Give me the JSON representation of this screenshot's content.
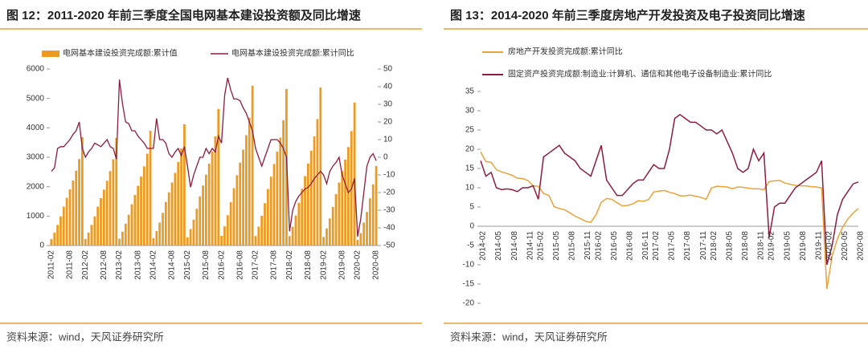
{
  "chart_data": [
    {
      "type": "bar_line",
      "title": "图 12：2011-2020 年前三季度全国电网基本建设投资额及同比增速",
      "source": "资料来源：wind，天风证券研究所",
      "categories": [
        "2011-02",
        null,
        null,
        null,
        null,
        null,
        "2011-08",
        null,
        null,
        null,
        null,
        "2012-02",
        null,
        null,
        null,
        null,
        null,
        "2012-08",
        null,
        null,
        null,
        null,
        "2013-02",
        null,
        null,
        null,
        null,
        null,
        "2013-08",
        null,
        null,
        null,
        null,
        "2014-02",
        null,
        null,
        null,
        null,
        null,
        "2014-08",
        null,
        null,
        null,
        null,
        "2015-02",
        null,
        null,
        null,
        null,
        null,
        "2015-08",
        null,
        null,
        null,
        null,
        "2016-02",
        null,
        null,
        null,
        null,
        null,
        "2016-08",
        null,
        null,
        null,
        null,
        "2017-02",
        null,
        null,
        null,
        null,
        null,
        "2017-08",
        null,
        null,
        null,
        null,
        "2018-02",
        null,
        null,
        null,
        null,
        null,
        "2018-08",
        null,
        null,
        null,
        null,
        "2019-02",
        null,
        null,
        null,
        null,
        null,
        "2019-08",
        null,
        null,
        null,
        null,
        "2020-02",
        null,
        null,
        null,
        null,
        null,
        "2020-08"
      ],
      "series": [
        {
          "name": "电网基本建设投资完成额:累计值",
          "type": "bar",
          "color": "#ec9a22",
          "values": [
            220,
            440,
            700,
            990,
            1320,
            1620,
            1910,
            2210,
            2540,
            2940,
            3680,
            220,
            440,
            700,
            990,
            1320,
            1610,
            1900,
            2200,
            2530,
            2930,
            3660,
            230,
            470,
            740,
            1050,
            1400,
            1720,
            2030,
            2340,
            2690,
            3120,
            3900,
            250,
            490,
            780,
            1110,
            1480,
            1810,
            2140,
            2470,
            2840,
            3300,
            4120,
            280,
            560,
            880,
            1250,
            1670,
            2040,
            2410,
            2780,
            3200,
            3710,
            4640,
            330,
            650,
            1030,
            1470,
            1950,
            2390,
            2820,
            3260,
            3750,
            4340,
            5430,
            320,
            640,
            1010,
            1440,
            1920,
            2340,
            2770,
            3190,
            3670,
            4260,
            5320,
            320,
            640,
            1020,
            1450,
            1930,
            2360,
            2790,
            3220,
            3710,
            4300,
            5370,
            290,
            580,
            920,
            1310,
            1750,
            2140,
            2530,
            2920,
            3350,
            3890,
            4860,
            190,
            420,
            780,
            1140,
            1600,
            2080,
            2700
          ]
        },
        {
          "name": "电网基本建设投资完成额:累计同比",
          "type": "line",
          "axis": "y2",
          "color": "#8c1d40",
          "values": [
            -8,
            -6,
            5,
            6,
            6,
            8,
            10,
            13,
            15,
            20,
            5,
            0,
            3,
            5,
            8,
            7,
            6,
            8,
            10,
            6,
            5,
            -1,
            44,
            30,
            20,
            19,
            15,
            15,
            12,
            10,
            8,
            5,
            5,
            5,
            22,
            10,
            10,
            8,
            2,
            0,
            3,
            5,
            1,
            6,
            -5,
            -17,
            -10,
            -5,
            0,
            0,
            5,
            2,
            5,
            3,
            12,
            8,
            35,
            45,
            38,
            33,
            33,
            32,
            28,
            25,
            20,
            15,
            5,
            0,
            -5,
            0,
            5,
            10,
            10,
            10,
            8,
            5,
            0,
            -42,
            -30,
            -25,
            -22,
            -20,
            -18,
            -17,
            -15,
            -12,
            -10,
            -8,
            -10,
            -15,
            -8,
            -5,
            -3,
            0,
            -10,
            -15,
            -20,
            -18,
            -12,
            -45,
            -35,
            -20,
            -5,
            0,
            2,
            -2
          ]
        }
      ],
      "ylim": [
        0,
        6000
      ],
      "yticks": [
        0,
        1000,
        2000,
        3000,
        4000,
        5000,
        6000
      ],
      "y2lim": [
        -50,
        50
      ],
      "y2ticks": [
        -50,
        -40,
        -30,
        -20,
        -10,
        0,
        10,
        20,
        30,
        40,
        50
      ],
      "grid": false
    },
    {
      "type": "line",
      "title": "图 13：2014-2020 年前三季度房地产开发投资及电子投资同比增速",
      "source": "资料来源：wind，天风证券研究所",
      "categories": [
        "2014-02",
        null,
        null,
        "2014-05",
        null,
        null,
        "2014-08",
        null,
        null,
        "2014-11",
        null,
        "2015-02",
        null,
        null,
        "2015-05",
        null,
        null,
        "2015-08",
        null,
        null,
        "2015-11",
        null,
        "2016-02",
        null,
        null,
        "2016-05",
        null,
        null,
        "2016-08",
        null,
        null,
        "2016-11",
        null,
        "2017-02",
        null,
        null,
        "2017-05",
        null,
        null,
        "2017-08",
        null,
        null,
        "2017-11",
        null,
        "2018-02",
        null,
        null,
        "2018-05",
        null,
        null,
        "2018-08",
        null,
        null,
        "2018-11",
        null,
        "2019-02",
        null,
        null,
        "2019-05",
        null,
        null,
        "2019-08",
        null,
        null,
        "2019-11",
        null,
        "2020-02",
        null,
        null,
        "2020-05",
        null,
        null,
        "2020-08"
      ],
      "series": [
        {
          "name": "房地产开发投资完成额:累计同比",
          "color": "#e8a33a",
          "values": [
            19.3,
            16.8,
            16.6,
            14.7,
            14.1,
            13.7,
            13.2,
            12.5,
            12.4,
            11.9,
            10.5,
            10.4,
            8.5,
            8.0,
            5.1,
            4.6,
            4.3,
            3.5,
            2.6,
            2.0,
            1.3,
            1.0,
            3.0,
            6.2,
            7.2,
            7.0,
            6.1,
            5.3,
            5.4,
            5.8,
            6.6,
            6.5,
            6.9,
            8.9,
            9.1,
            9.3,
            8.8,
            8.5,
            7.9,
            7.9,
            8.1,
            7.8,
            7.5,
            7.0,
            9.9,
            10.4,
            10.3,
            10.2,
            9.7,
            10.2,
            10.1,
            9.9,
            9.7,
            9.7,
            9.5,
            11.6,
            11.8,
            11.9,
            11.2,
            10.9,
            10.6,
            10.5,
            10.5,
            10.3,
            10.2,
            9.9,
            -16.3,
            -7.7,
            -3.3,
            -0.3,
            1.9,
            3.4,
            4.6
          ]
        },
        {
          "name": "固定资产投资完成额:制造业:计算机、通信和其他电子设备制造业:累计同比",
          "color": "#8c1d40",
          "values": [
            17,
            13,
            14,
            10,
            9.5,
            9.7,
            9.5,
            9,
            10,
            10,
            10.5,
            7,
            18,
            19,
            20,
            21,
            19,
            18,
            17,
            15,
            14,
            13,
            17,
            21,
            12,
            10,
            8,
            8,
            9.5,
            11,
            12,
            12,
            14,
            16,
            15,
            15,
            20,
            28,
            29,
            28,
            27,
            27,
            26,
            25,
            25,
            24,
            25,
            22,
            19,
            15,
            14,
            15,
            20,
            17,
            19,
            -3,
            5,
            6,
            6,
            8,
            10,
            11,
            12,
            13,
            14,
            17,
            -10,
            -5,
            3,
            7,
            9,
            11,
            11.5
          ]
        }
      ],
      "ylim": [
        -20,
        35
      ],
      "yticks": [
        -20,
        -15,
        -10,
        -5,
        0,
        5,
        10,
        15,
        20,
        25,
        30,
        35
      ],
      "grid": false
    }
  ]
}
